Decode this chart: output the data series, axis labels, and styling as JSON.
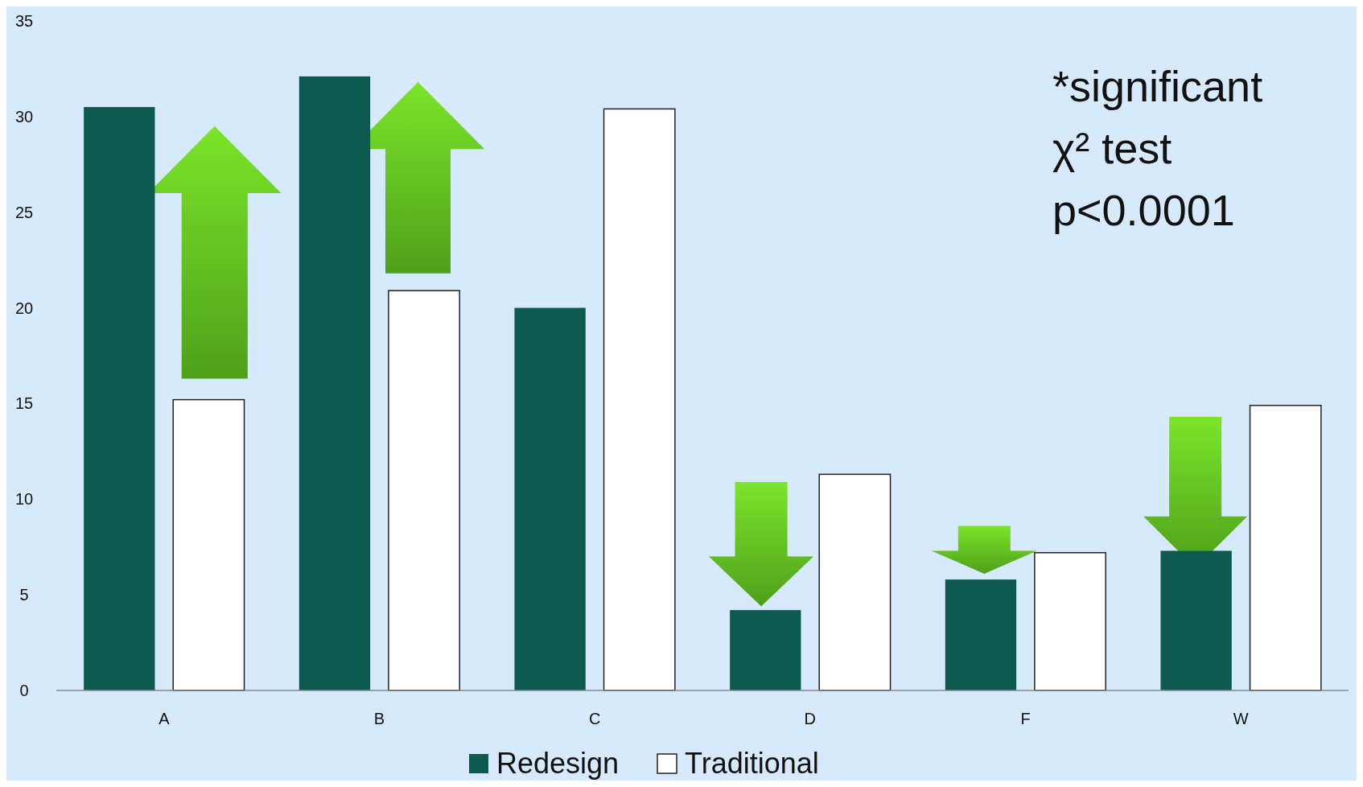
{
  "chart_data": {
    "type": "bar",
    "categories": [
      "A",
      "B",
      "C",
      "D",
      "F",
      "W"
    ],
    "series": [
      {
        "name": "Redesign",
        "color": "#0f5a50",
        "values": [
          30.5,
          32.1,
          20,
          4.2,
          5.8,
          7.3
        ]
      },
      {
        "name": "Traditional",
        "color": "#ffffff",
        "values": [
          15.2,
          20.9,
          30.4,
          11.3,
          7.2,
          14.9
        ]
      }
    ],
    "ylim": [
      0,
      35
    ],
    "yticks": [
      0,
      5,
      10,
      15,
      20,
      25,
      30,
      35
    ],
    "grid": false,
    "legend": "bottom",
    "annotations": [
      "*significant",
      "χ² test",
      "p<0.0001"
    ]
  }
}
